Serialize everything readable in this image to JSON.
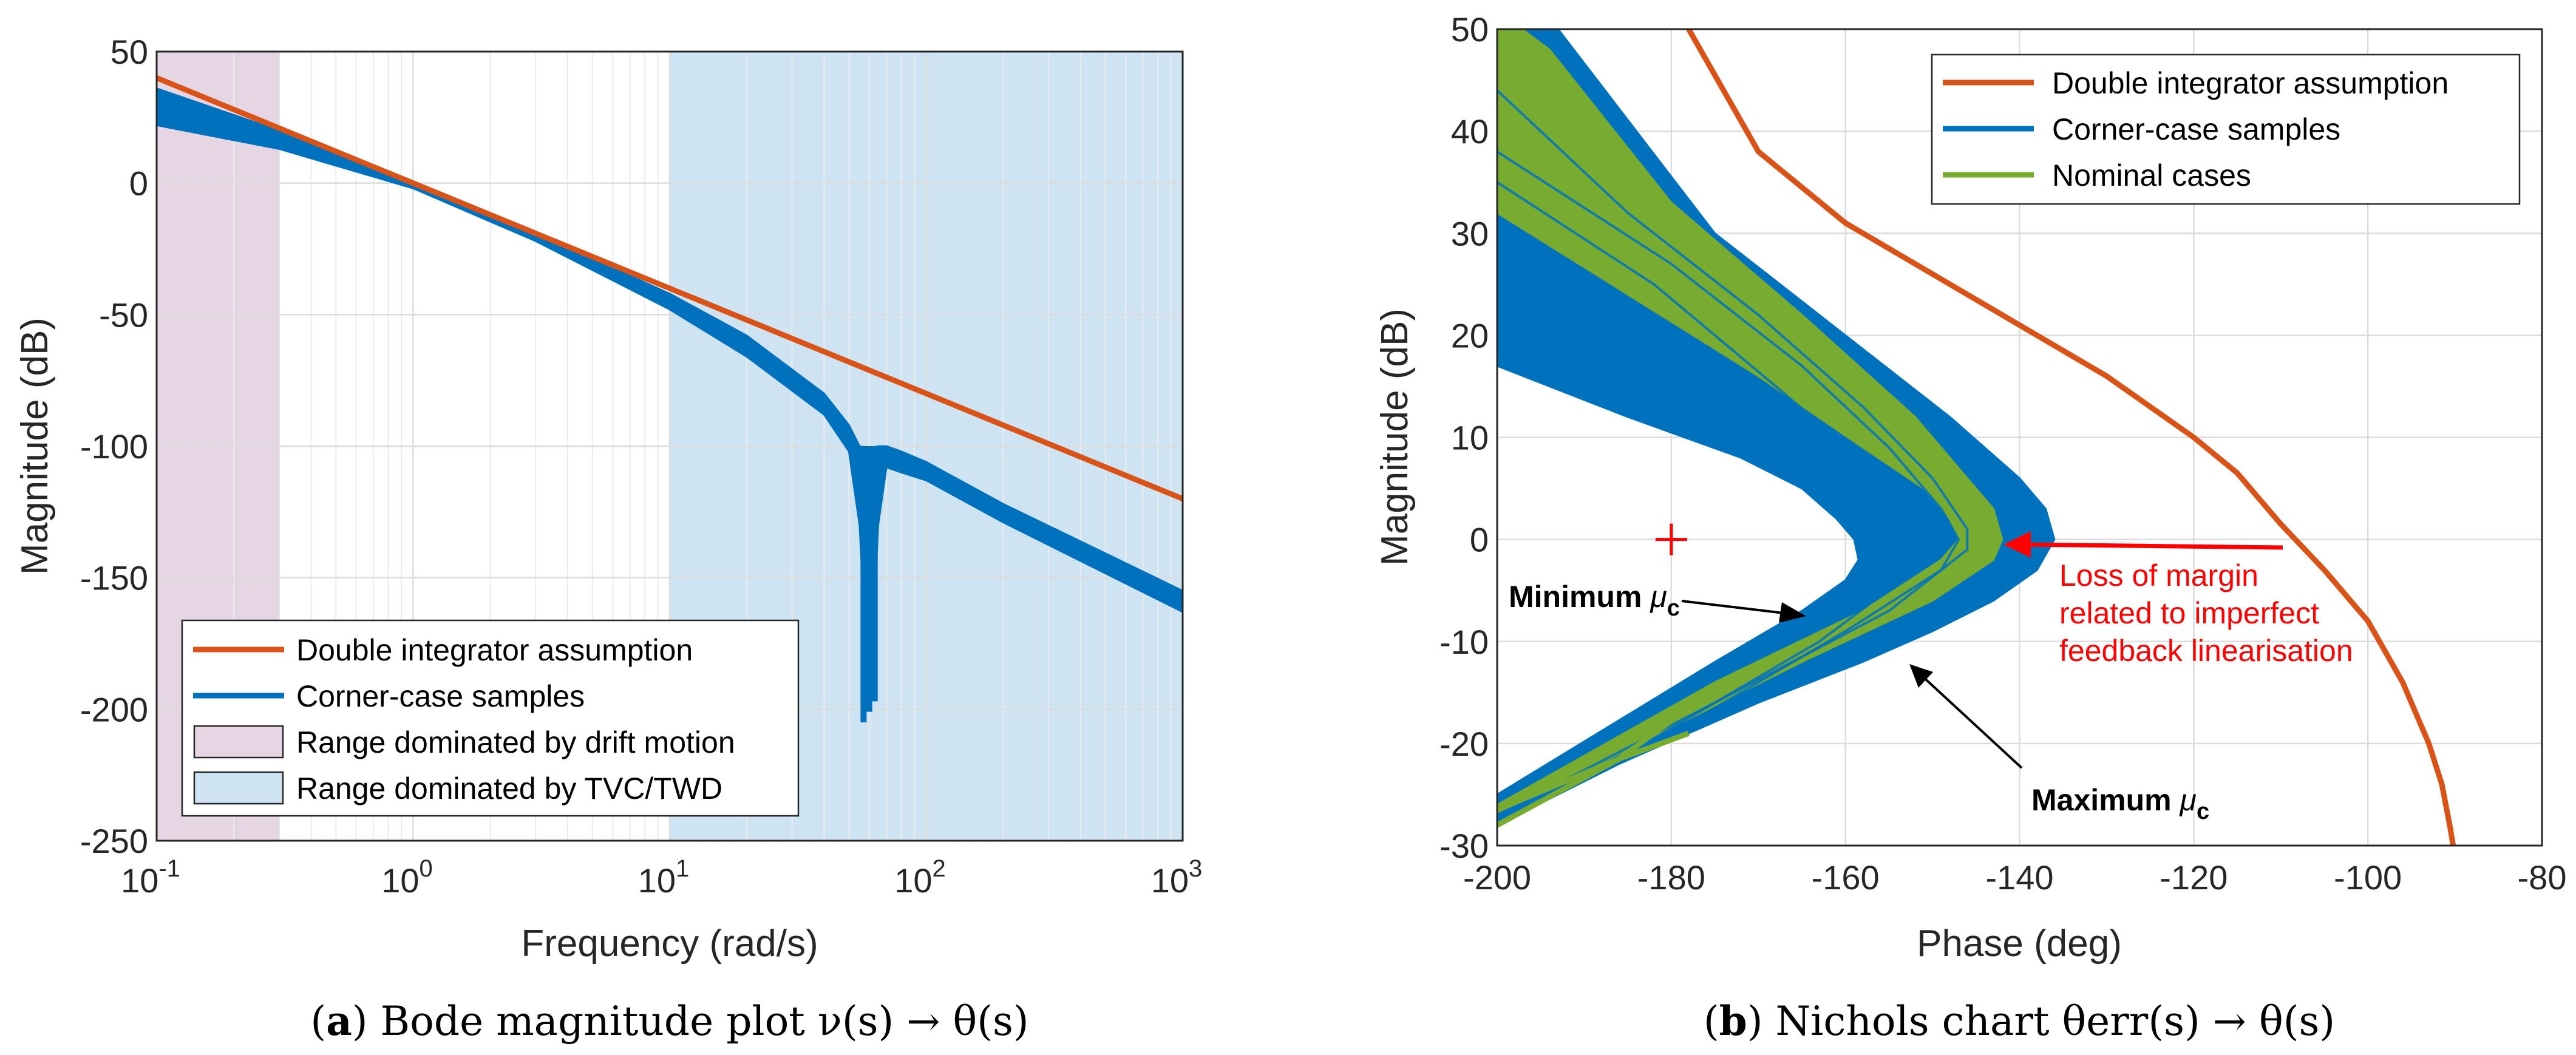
{
  "chart_data": [
    {
      "id": "a",
      "type": "line",
      "xscale": "log",
      "title": "",
      "xlabel": "Frequency (rad/s)",
      "ylabel": "Magnitude (dB)",
      "xlim": [
        0.1,
        1000
      ],
      "ylim": [
        -250,
        50
      ],
      "yticks": [
        50,
        0,
        -50,
        -100,
        -150,
        -200,
        -250
      ],
      "xtick_base": "10",
      "xtick_exponents": [
        "-1",
        "0",
        "1",
        "2",
        "3"
      ],
      "caption_letter": "a",
      "caption_text": "Bode magnitude plot ν(s) → θ(s)",
      "bands": [
        {
          "name": "Range dominated by drift motion",
          "x": [
            0.1,
            0.3
          ],
          "color": "#e6d5e3"
        },
        {
          "name": "Range dominated by TVC/TWD",
          "x": [
            10,
            1000
          ],
          "color": "#cfe4f2"
        }
      ],
      "series": [
        {
          "name": "Double integrator assumption",
          "color": "#d95319",
          "description": "slope -40 dB/decade through 0 dB at 1 rad/s",
          "x": [
            0.1,
            1,
            10,
            100,
            1000
          ],
          "y": [
            40,
            0,
            -40,
            -80,
            -120
          ]
        },
        {
          "name": "Corner-case samples",
          "color": "#0072bd",
          "x": [
            0.1,
            0.3,
            1,
            3,
            10,
            20,
            40,
            50,
            55,
            60,
            65,
            70,
            80,
            100,
            200,
            1000
          ],
          "upper": [
            36,
            20,
            0,
            -19,
            -42,
            -58,
            -80,
            -92,
            -100,
            -101,
            -100,
            -100,
            -102,
            -106,
            -122,
            -155
          ],
          "lower": [
            22,
            13,
            -2,
            -22,
            -48,
            -66,
            -88,
            -102,
            -130,
            -200,
            -130,
            -108,
            -110,
            -113,
            -129,
            -163
          ]
        }
      ],
      "legend": [
        "Double integrator assumption",
        "Corner-case samples",
        "Range dominated by drift motion",
        "Range dominated by TVC/TWD"
      ],
      "legend_position": "bottom-left"
    },
    {
      "id": "b",
      "type": "line",
      "title": "",
      "xlabel": "Phase (deg)",
      "ylabel": "Magnitude (dB)",
      "xlim": [
        -200,
        -80
      ],
      "ylim": [
        -30,
        50
      ],
      "xticks": [
        -200,
        -180,
        -160,
        -140,
        -120,
        -100,
        -80
      ],
      "yticks": [
        50,
        40,
        30,
        20,
        10,
        0,
        -10,
        -20,
        -30
      ],
      "caption_letter": "b",
      "caption_text": "Nichols chart θerr(s) → θ(s)",
      "series": [
        {
          "name": "Double integrator assumption",
          "color": "#d95319",
          "x": [
            -178,
            -170,
            -160,
            -150,
            -140,
            -130,
            -120,
            -115,
            -110,
            -105,
            -100,
            -96,
            -93,
            -91.5,
            -90.6,
            -90.2
          ],
          "y": [
            50,
            38,
            31,
            26,
            21,
            16,
            10,
            6.5,
            1.5,
            -3,
            -8,
            -14,
            -20,
            -24,
            -28,
            -30
          ]
        },
        {
          "name": "Corner-case samples",
          "color": "#0072bd",
          "description": "filled family of Nichols curves",
          "outer_x": [
            -193,
            -175,
            -160,
            -148,
            -140,
            -137,
            -136,
            -138,
            -143,
            -150,
            -158,
            -170,
            -186,
            -200
          ],
          "outer_y": [
            50,
            30,
            20,
            12,
            6,
            3,
            0,
            -3,
            -6,
            -9,
            -12,
            -16,
            -22,
            -28
          ],
          "inner_x": [
            -200,
            -185,
            -172,
            -165,
            -161,
            -159,
            -158.5,
            -160,
            -165,
            -175,
            -200
          ],
          "inner_y": [
            17,
            12,
            8,
            5,
            2,
            0,
            -2,
            -4,
            -7,
            -12,
            -25
          ]
        },
        {
          "name": "Nominal cases",
          "color": "#77ac30",
          "outer_x": [
            -194,
            -180,
            -165,
            -152,
            -146,
            -143,
            -142,
            -143,
            -150,
            -165,
            -186,
            -200
          ],
          "outer_y": [
            48,
            33,
            22,
            12,
            6,
            3,
            0,
            -2,
            -6,
            -12,
            -21,
            -27
          ],
          "inner_x": [
            -200,
            -185,
            -170,
            -158,
            -151,
            -148,
            -147,
            -149,
            -158,
            -175,
            -200
          ],
          "inner_y": [
            32,
            24,
            16,
            9,
            5,
            2,
            0,
            -2,
            -7,
            -14,
            -26
          ]
        }
      ],
      "critical_point": {
        "x": -180,
        "y": 0,
        "marker": "+",
        "color": "#ff0000"
      },
      "annotations": [
        {
          "label": "Minimum",
          "sub": "c",
          "kind": "black"
        },
        {
          "label": "Maximum",
          "sub": "c",
          "kind": "black"
        },
        {
          "lines": [
            "Loss of margin",
            "related to imperfect",
            "feedback linearisation"
          ],
          "kind": "red"
        }
      ],
      "legend": [
        "Double integrator assumption",
        "Corner-case samples",
        "Nominal cases"
      ],
      "legend_position": "top-right"
    }
  ]
}
